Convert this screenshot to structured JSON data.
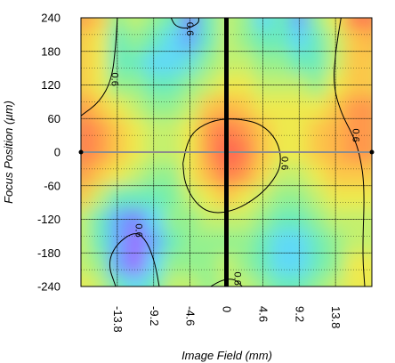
{
  "chart_data": {
    "type": "heatmap",
    "title": "",
    "xlabel": "Image Field (mm)",
    "ylabel": "Focus Position (µm)",
    "x_ticks": [
      "-13.8",
      "-9.2",
      "-4.6",
      "0",
      "4.6",
      "9.2",
      "13.8"
    ],
    "y_ticks": [
      "240",
      "180",
      "120",
      "60",
      "0",
      "-60",
      "-120",
      "-180",
      "-240"
    ],
    "xlim": [
      -18.4,
      18.4
    ],
    "ylim": [
      -240,
      240
    ],
    "grid": true,
    "colormap": [
      "#9b6bff",
      "#6e8cff",
      "#5fd6ff",
      "#6ff0a8",
      "#b8f276",
      "#f4e84a",
      "#ffb14a",
      "#ff5e52"
    ],
    "z_range": [
      0,
      1
    ],
    "z_columns_x": [
      -18.4,
      -16.1,
      -13.8,
      -11.5,
      -9.2,
      -6.9,
      -4.6,
      -2.3,
      0,
      2.3,
      4.6,
      6.9,
      9.2,
      11.5,
      13.8,
      16.1,
      18.4
    ],
    "z_rows_y": [
      240,
      200,
      160,
      120,
      80,
      40,
      0,
      -40,
      -80,
      -120,
      -160,
      -200,
      -240
    ],
    "z": [
      [
        0.9,
        0.8,
        0.5,
        0.6,
        0.5,
        0.4,
        0.1,
        0.4,
        0.6,
        0.5,
        0.3,
        0.4,
        0.2,
        0.5,
        0.7,
        0.95,
        0.95
      ],
      [
        0.8,
        0.7,
        0.4,
        0.5,
        0.4,
        0.3,
        0.2,
        0.4,
        0.6,
        0.5,
        0.4,
        0.4,
        0.3,
        0.4,
        0.6,
        0.8,
        0.85
      ],
      [
        0.8,
        0.7,
        0.4,
        0.4,
        0.3,
        0.3,
        0.35,
        0.5,
        0.6,
        0.6,
        0.5,
        0.5,
        0.4,
        0.4,
        0.6,
        0.8,
        0.8
      ],
      [
        0.8,
        0.7,
        0.5,
        0.5,
        0.4,
        0.4,
        0.5,
        0.6,
        0.7,
        0.7,
        0.6,
        0.6,
        0.6,
        0.5,
        0.7,
        0.8,
        0.8
      ],
      [
        0.9,
        0.8,
        0.7,
        0.6,
        0.5,
        0.5,
        0.6,
        0.8,
        0.85,
        0.8,
        0.7,
        0.7,
        0.7,
        0.7,
        0.8,
        0.9,
        0.9
      ],
      [
        0.95,
        0.9,
        0.8,
        0.7,
        0.6,
        0.6,
        0.7,
        0.9,
        0.95,
        0.9,
        0.8,
        0.7,
        0.7,
        0.8,
        0.85,
        0.9,
        0.9
      ],
      [
        0.95,
        0.9,
        0.8,
        0.7,
        0.6,
        0.6,
        0.7,
        0.9,
        1.0,
        0.95,
        0.8,
        0.7,
        0.7,
        0.8,
        0.85,
        0.9,
        0.9
      ],
      [
        0.9,
        0.8,
        0.7,
        0.6,
        0.5,
        0.5,
        0.7,
        0.85,
        0.95,
        0.9,
        0.75,
        0.6,
        0.6,
        0.7,
        0.8,
        0.8,
        0.8
      ],
      [
        0.8,
        0.6,
        0.4,
        0.4,
        0.4,
        0.45,
        0.6,
        0.7,
        0.8,
        0.7,
        0.6,
        0.5,
        0.5,
        0.6,
        0.7,
        0.7,
        0.7
      ],
      [
        0.6,
        0.4,
        0.2,
        0.1,
        0.3,
        0.5,
        0.5,
        0.6,
        0.6,
        0.6,
        0.5,
        0.4,
        0.4,
        0.5,
        0.6,
        0.6,
        0.6
      ],
      [
        0.6,
        0.4,
        0.2,
        0.0,
        0.2,
        0.4,
        0.5,
        0.5,
        0.5,
        0.5,
        0.4,
        0.3,
        0.3,
        0.4,
        0.5,
        0.6,
        0.6
      ],
      [
        0.6,
        0.5,
        0.2,
        0.0,
        0.3,
        0.5,
        0.5,
        0.5,
        0.6,
        0.5,
        0.4,
        0.3,
        0.3,
        0.4,
        0.5,
        0.7,
        0.7
      ],
      [
        0.7,
        0.6,
        0.4,
        0.3,
        0.4,
        0.6,
        0.6,
        0.5,
        0.6,
        0.6,
        0.5,
        0.4,
        0.4,
        0.5,
        0.6,
        0.7,
        0.7
      ]
    ],
    "contours": [
      {
        "label": "0.6",
        "points": [
          [
            -5.5,
            -20
          ],
          [
            -5.0,
            15
          ],
          [
            -4.0,
            40
          ],
          [
            -1.5,
            58
          ],
          [
            1.5,
            60
          ],
          [
            4.5,
            50
          ],
          [
            6.5,
            20
          ],
          [
            7.0,
            -20
          ],
          [
            6.0,
            -50
          ],
          [
            4.0,
            -80
          ],
          [
            1.0,
            -105
          ],
          [
            -2.0,
            -110
          ],
          [
            -4.0,
            -90
          ],
          [
            -5.3,
            -55
          ],
          [
            -5.5,
            -20
          ]
        ]
      },
      {
        "label": "0.6",
        "points": [
          [
            -18.4,
            65
          ],
          [
            -16.0,
            90
          ],
          [
            -14.5,
            130
          ],
          [
            -14.0,
            190
          ],
          [
            -13.8,
            240
          ]
        ]
      },
      {
        "label": "0.6",
        "points": [
          [
            14.5,
            240
          ],
          [
            13.8,
            180
          ],
          [
            13.5,
            120
          ],
          [
            14.5,
            70
          ],
          [
            16.0,
            30
          ],
          [
            16.8,
            0
          ],
          [
            17.5,
            -60
          ],
          [
            17.2,
            -180
          ],
          [
            17.5,
            -240
          ]
        ]
      },
      {
        "label": "0.6",
        "points": [
          [
            -14.0,
            -240
          ],
          [
            -15.0,
            -200
          ],
          [
            -14.0,
            -165
          ],
          [
            -11.5,
            -140
          ],
          [
            -10.0,
            -160
          ],
          [
            -9.0,
            -200
          ],
          [
            -8.5,
            -240
          ]
        ]
      },
      {
        "label": "0.6",
        "points": [
          [
            -7.0,
            240
          ],
          [
            -6.5,
            225
          ],
          [
            -5.0,
            220
          ],
          [
            -3.5,
            230
          ],
          [
            -3.5,
            240
          ]
        ]
      },
      {
        "label": "0.6",
        "points": [
          [
            -2.0,
            -240
          ],
          [
            -0.5,
            -228
          ],
          [
            1.0,
            -226
          ],
          [
            2.0,
            -240
          ]
        ]
      }
    ],
    "vertical_line_x": 0,
    "horizontal_line_y": 0,
    "line_endpoints": [
      [
        -18.4,
        0
      ],
      [
        18.4,
        0
      ]
    ]
  }
}
